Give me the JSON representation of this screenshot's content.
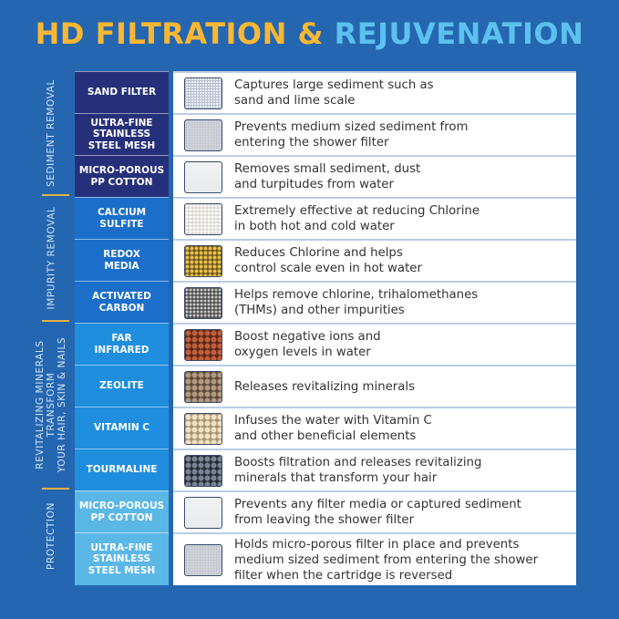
{
  "title": {
    "part1": "HD FILTRATION &",
    "part2": "REJUVENATION"
  },
  "colors": {
    "background": "#2566b0",
    "title_yellow": "#f9b733",
    "title_blue": "#5cc1ee",
    "sediment": "#26307a",
    "impurity": "#1b6fca",
    "revitalizing": "#1f8ede",
    "protection": "#5bb7e6"
  },
  "sections": [
    {
      "label": "SEDIMENT REMOVAL"
    },
    {
      "label": "IMPURITY REMOVAL"
    },
    {
      "label": "REVITALIZING MINERALS\nTRANSFORM\nYOUR HAIR, SKIN & NAILS"
    },
    {
      "label": "PROTECTION"
    }
  ],
  "rows": [
    {
      "name": "SAND FILTER",
      "desc": "Captures large sediment such as\nsand and lime scale",
      "texture": "grid-mesh"
    },
    {
      "name": "ULTRA-FINE\nSTAINLESS\nSTEEL MESH",
      "desc": "Prevents medium sized sediment from\nentering the shower filter",
      "texture": "fine-mesh"
    },
    {
      "name": "MICRO-POROUS\nPP COTTON",
      "desc": "Removes small sediment, dust\nand turpitudes from water",
      "texture": "cotton"
    },
    {
      "name": "CALCIUM\nSULFITE",
      "desc": "Extremely effective at reducing Chlorine\nin both hot and cold water",
      "texture": "white-granules"
    },
    {
      "name": "REDOX\nMEDIA",
      "desc": "Reduces Chlorine and helps\ncontrol scale even in hot water",
      "texture": "gold-granules"
    },
    {
      "name": "ACTIVATED\nCARBON",
      "desc": "Helps remove chlorine, trihalomethanes\n(THMs) and other impurities",
      "texture": "carbon-granules"
    },
    {
      "name": "FAR\nINFRARED",
      "desc": "Boost negative ions and\noxygen levels  in water",
      "texture": "red-beads"
    },
    {
      "name": "ZEOLITE",
      "desc": "Releases revitalizing minerals",
      "texture": "brown-beads"
    },
    {
      "name": "VITAMIN C",
      "desc": "Infuses the water with Vitamin C\nand other beneficial elements",
      "texture": "cream-beads"
    },
    {
      "name": "TOURMALINE",
      "desc": "Boosts filtration and releases revitalizing\nminerals that transform your hair",
      "texture": "dark-beads"
    },
    {
      "name": "MICRO-POROUS\nPP COTTON",
      "desc": "Prevents any filter media or captured sediment\nfrom leaving the shower filter",
      "texture": "cotton"
    },
    {
      "name": "ULTRA-FINE\nSTAINLESS\nSTEEL MESH",
      "desc": "Holds micro-porous filter in place and prevents\nmedium sized sediment from entering the shower\nfilter when the cartridge is reversed",
      "texture": "fine-mesh"
    }
  ]
}
